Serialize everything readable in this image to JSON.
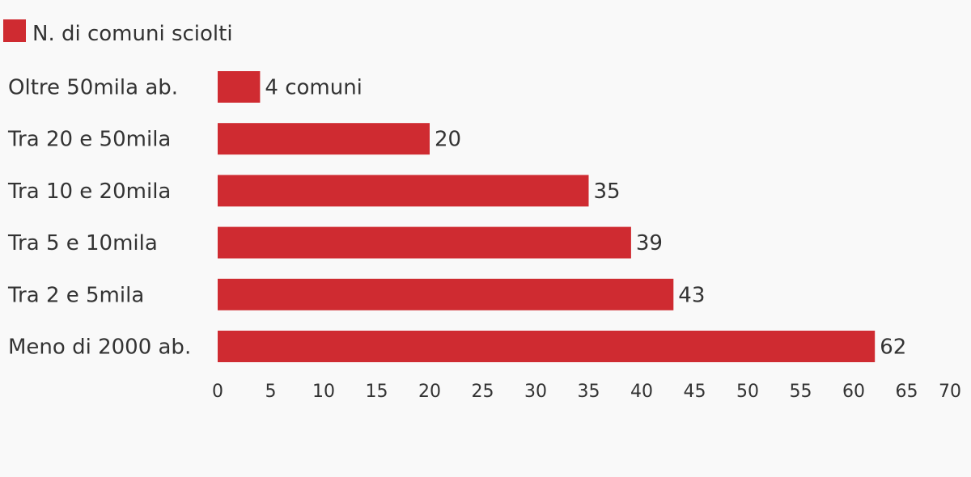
{
  "chart_data": {
    "type": "bar",
    "orientation": "horizontal",
    "categories": [
      "Oltre 50mila ab.",
      "Tra 20 e 50mila",
      "Tra 10 e 20mila",
      "Tra 5 e 10mila",
      "Tra 2 e 5mila",
      "Meno di 2000 ab."
    ],
    "series": [
      {
        "name": "N. di comuni sciolti",
        "values": [
          4,
          20,
          35,
          39,
          43,
          62
        ],
        "color": "#cf2b31"
      }
    ],
    "value_labels": [
      "4 comuni",
      "20",
      "35",
      "39",
      "43",
      "62"
    ],
    "xlim": [
      0,
      70
    ],
    "xticks": [
      0,
      5,
      10,
      15,
      20,
      25,
      30,
      35,
      40,
      45,
      50,
      55,
      60,
      65,
      70
    ],
    "grid": false,
    "legend_position": "top-left"
  }
}
